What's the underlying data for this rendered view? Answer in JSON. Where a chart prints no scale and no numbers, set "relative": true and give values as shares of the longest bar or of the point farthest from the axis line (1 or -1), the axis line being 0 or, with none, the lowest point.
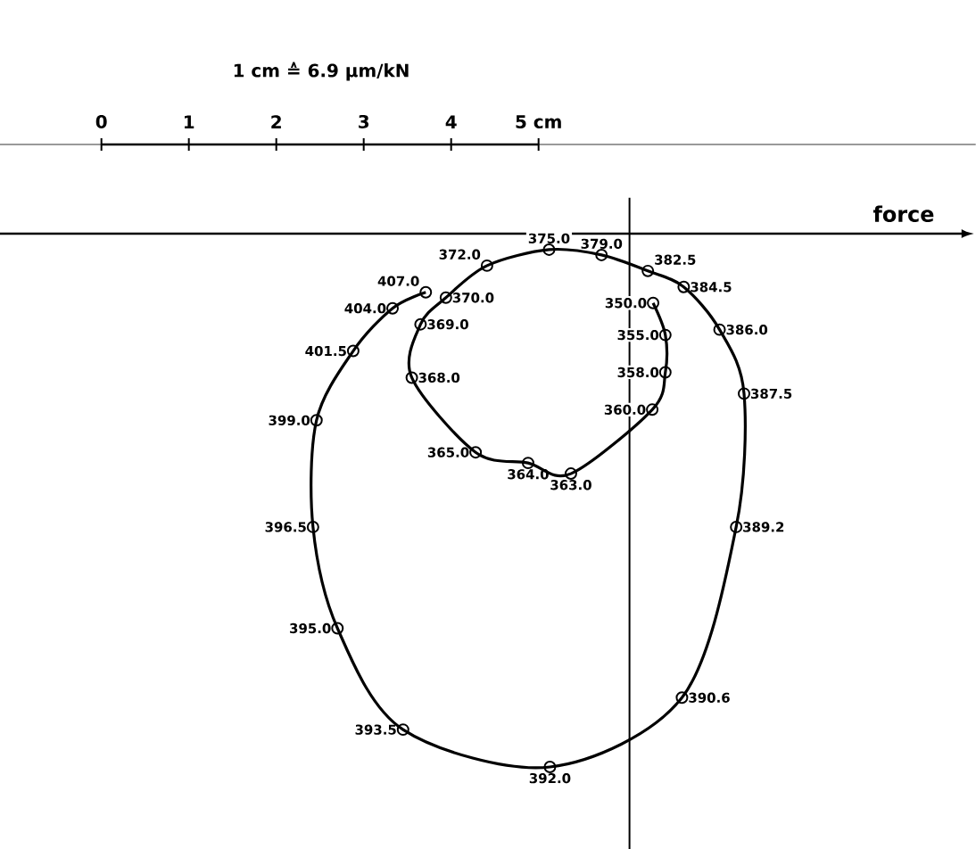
{
  "chart_data": {
    "type": "line",
    "title": "1 cm ≙ 6.9 μm/kN",
    "relative": true,
    "xlim": [
      -1.16,
      10.0
    ],
    "xticks": [
      0,
      1,
      2,
      3,
      4,
      {
        "value": 5,
        "label": "5 cm"
      }
    ],
    "marker": "circle",
    "line_style": "solid",
    "series": [
      {
        "color": "#000000",
        "x": [
          6.31,
          6.45,
          6.45,
          6.3,
          5.37,
          4.88,
          4.28,
          3.55,
          3.65,
          3.94,
          4.41,
          5.12,
          5.72,
          6.25,
          6.66,
          7.07,
          7.35,
          7.26,
          6.64,
          5.13,
          3.45,
          2.7,
          2.42,
          2.46,
          2.88,
          3.33,
          3.71
        ],
        "values": [
          -0.13,
          -0.19,
          -0.26,
          -0.33,
          -0.45,
          -0.43,
          -0.41,
          -0.27,
          -0.17,
          -0.12,
          -0.06,
          -0.03,
          -0.04,
          -0.07,
          -0.1,
          -0.18,
          -0.3,
          -0.55,
          -0.87,
          -1,
          -0.93,
          -0.74,
          -0.55,
          -0.35,
          -0.22,
          -0.14,
          -0.11
        ]
      }
    ],
    "annotations": [
      {
        "text": "350.0",
        "x": 6.31,
        "y": -0.13
      },
      {
        "text": "355.0",
        "x": 6.45,
        "y": -0.19
      },
      {
        "text": "358.0",
        "x": 6.45,
        "y": -0.26
      },
      {
        "text": "360.0",
        "x": 6.3,
        "y": -0.33
      },
      {
        "text": "363.0",
        "x": 5.37,
        "y": -0.45
      },
      {
        "text": "364.0",
        "x": 4.88,
        "y": -0.43
      },
      {
        "text": "365.0",
        "x": 4.28,
        "y": -0.41
      },
      {
        "text": "368.0",
        "x": 3.55,
        "y": -0.27
      },
      {
        "text": "369.0",
        "x": 3.65,
        "y": -0.17
      },
      {
        "text": "370.0",
        "x": 3.94,
        "y": -0.12
      },
      {
        "text": "372.0",
        "x": 4.41,
        "y": -0.06
      },
      {
        "text": "375.0",
        "x": 5.12,
        "y": -0.03
      },
      {
        "text": "379.0",
        "x": 5.72,
        "y": -0.04
      },
      {
        "text": "382.5",
        "x": 6.25,
        "y": -0.07
      },
      {
        "text": "384.5",
        "x": 6.66,
        "y": -0.1
      },
      {
        "text": "386.0",
        "x": 7.07,
        "y": -0.18
      },
      {
        "text": "387.5",
        "x": 7.35,
        "y": -0.3
      },
      {
        "text": "389.2",
        "x": 7.26,
        "y": -0.55
      },
      {
        "text": "390.6",
        "x": 6.64,
        "y": -0.87
      },
      {
        "text": "392.0",
        "x": 5.13,
        "y": -1
      },
      {
        "text": "393.5",
        "x": 3.45,
        "y": -0.93
      },
      {
        "text": "395.0",
        "x": 2.7,
        "y": -0.74
      },
      {
        "text": "396.5",
        "x": 2.42,
        "y": -0.55
      },
      {
        "text": "399.0",
        "x": 2.46,
        "y": -0.35
      },
      {
        "text": "401.5",
        "x": 2.88,
        "y": -0.22
      },
      {
        "text": "404.0",
        "x": 3.33,
        "y": -0.14
      },
      {
        "text": "407.0",
        "x": 3.71,
        "y": -0.11
      }
    ],
    "ref_lines": [
      {
        "axis": "x",
        "value": 6.04
      },
      {
        "axis": "y",
        "value": 0,
        "label": "force"
      }
    ]
  }
}
